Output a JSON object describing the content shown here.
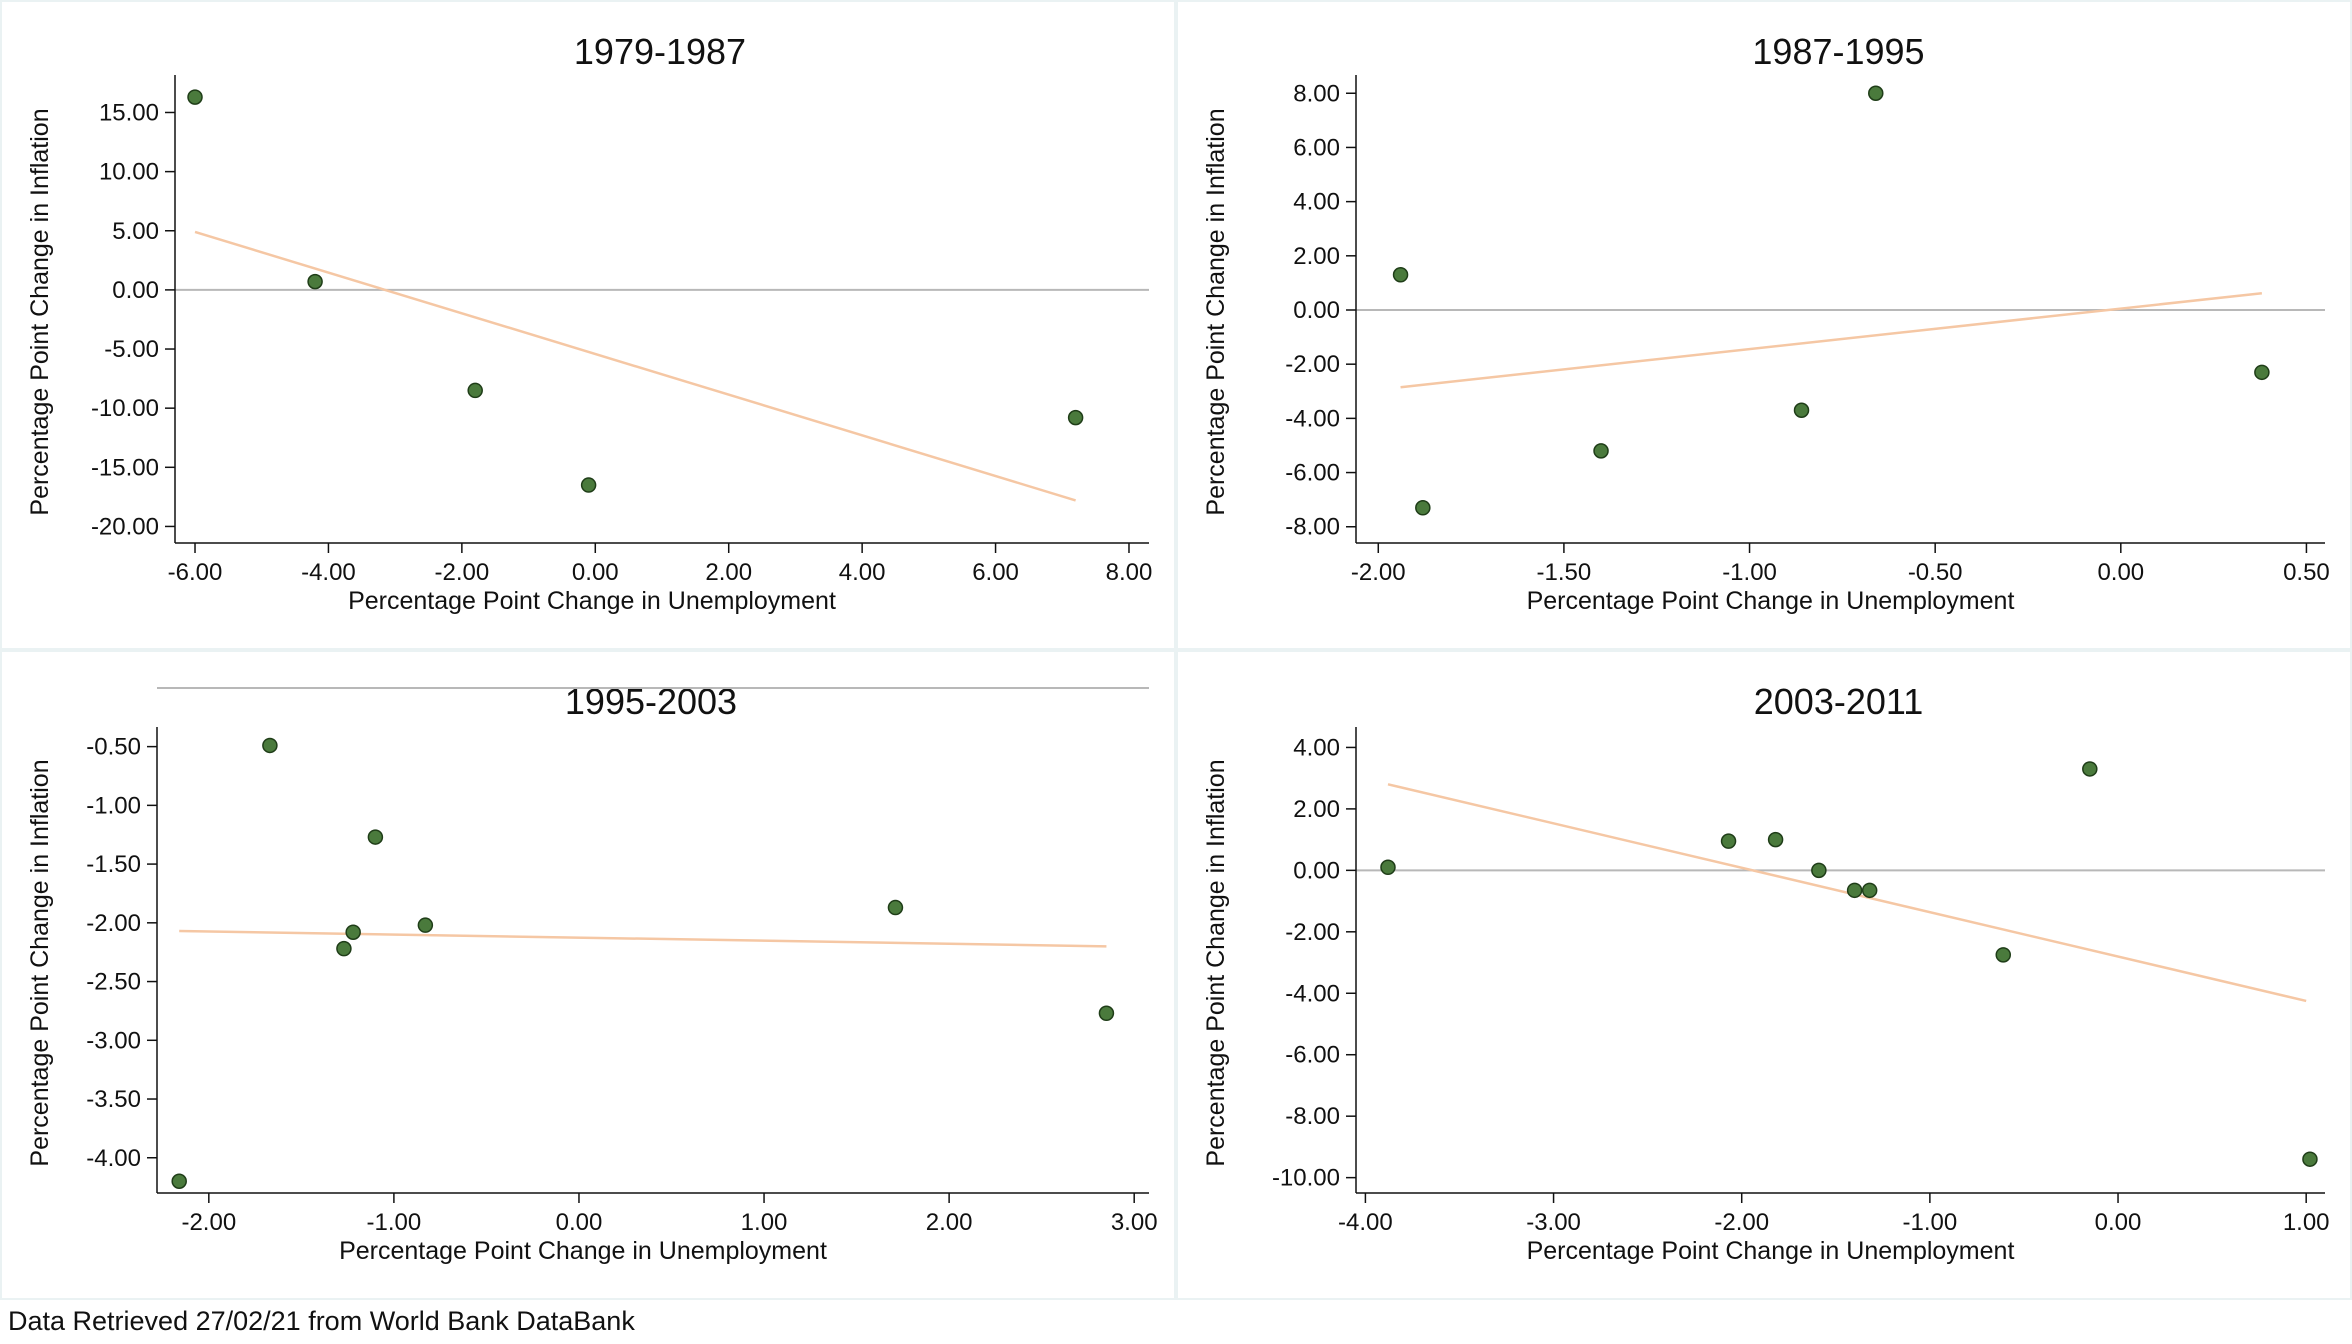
{
  "footer_note": "Data Retrieved 27/02/21 from World Bank DataBank",
  "colors": {
    "point_fill": "#4a7a3c",
    "point_stroke": "#1f3d18",
    "fit_line": "#f5c7a4",
    "zero_line": "#b8b8b8",
    "axis": "#111111"
  },
  "chart_data": [
    {
      "type": "scatter",
      "title": "1979-1987",
      "xlabel": "Percentage Point Change in Unemployment",
      "ylabel": "Percentage Point Change in Inflation",
      "xlim": [
        -6.3,
        8.3
      ],
      "ylim": [
        -21.4,
        18.0
      ],
      "xticks": [
        -6,
        -4,
        -2,
        0,
        2,
        4,
        6,
        8
      ],
      "xtick_labels": [
        "-6.00",
        "-4.00",
        "-2.00",
        "0.00",
        "2.00",
        "4.00",
        "6.00",
        "8.00"
      ],
      "yticks": [
        15,
        10,
        5,
        0,
        -5,
        -10,
        -15,
        -20
      ],
      "ytick_labels": [
        "15.00",
        "10.00",
        "5.00",
        "0.00",
        "-5.00",
        "-10.00",
        "-15.00",
        "-20.00"
      ],
      "zero_line": 0,
      "points": [
        {
          "x": -6.0,
          "y": 16.3
        },
        {
          "x": -4.2,
          "y": 0.7
        },
        {
          "x": -1.8,
          "y": -8.5
        },
        {
          "x": -0.1,
          "y": -16.5
        },
        {
          "x": 7.2,
          "y": -10.8
        }
      ],
      "fit": {
        "x": [
          -6.0,
          7.2
        ],
        "y": [
          4.9,
          -17.8
        ]
      }
    },
    {
      "type": "scatter",
      "title": "1987-1995",
      "xlabel": "Percentage Point Change in Unemployment",
      "ylabel": "Percentage Point Change in Inflation",
      "xlim": [
        -2.06,
        0.55
      ],
      "ylim": [
        -8.6,
        8.6
      ],
      "xticks": [
        -2.0,
        -1.5,
        -1.0,
        -0.5,
        0.0,
        0.5
      ],
      "xtick_labels": [
        "-2.00",
        "-1.50",
        "-1.00",
        "-0.50",
        "0.00",
        "0.50"
      ],
      "yticks": [
        8,
        6,
        4,
        2,
        0,
        -2,
        -4,
        -6,
        -8
      ],
      "ytick_labels": [
        "8.00",
        "6.00",
        "4.00",
        "2.00",
        "0.00",
        "-2.00",
        "-4.00",
        "-6.00",
        "-8.00"
      ],
      "zero_line": 0,
      "points": [
        {
          "x": -1.94,
          "y": 1.3
        },
        {
          "x": -1.88,
          "y": -7.3
        },
        {
          "x": -1.4,
          "y": -5.2
        },
        {
          "x": -0.86,
          "y": -3.7
        },
        {
          "x": -0.66,
          "y": 8.0
        },
        {
          "x": 0.38,
          "y": -2.3
        }
      ],
      "fit": {
        "x": [
          -1.94,
          0.38
        ],
        "y": [
          -2.85,
          0.62
        ]
      }
    },
    {
      "type": "scatter",
      "title": "1995-2003",
      "xlabel": "Percentage Point Change in Unemployment",
      "ylabel": "Percentage Point Change in Inflation",
      "xlim": [
        -2.28,
        3.08
      ],
      "ylim": [
        -4.3,
        -0.35
      ],
      "xticks": [
        -2,
        -1,
        0,
        1,
        2,
        3
      ],
      "xtick_labels": [
        "-2.00",
        "-1.00",
        "0.00",
        "1.00",
        "2.00",
        "3.00"
      ],
      "yticks": [
        -0.5,
        -1.0,
        -1.5,
        -2.0,
        -2.5,
        -3.0,
        -3.5,
        -4.0
      ],
      "ytick_labels": [
        "-0.50",
        "-1.00",
        "-1.50",
        "-2.00",
        "-2.50",
        "-3.00",
        "-3.50",
        "-4.00"
      ],
      "zero_line": 0,
      "points": [
        {
          "x": -2.16,
          "y": -4.2
        },
        {
          "x": -1.67,
          "y": -0.49
        },
        {
          "x": -1.27,
          "y": -2.22
        },
        {
          "x": -1.22,
          "y": -2.08
        },
        {
          "x": -1.1,
          "y": -1.27
        },
        {
          "x": -0.83,
          "y": -2.02
        },
        {
          "x": 1.71,
          "y": -1.87
        },
        {
          "x": 2.85,
          "y": -2.77
        }
      ],
      "fit": {
        "x": [
          -2.16,
          2.85
        ],
        "y": [
          -2.07,
          -2.2
        ]
      }
    },
    {
      "type": "scatter",
      "title": "2003-2011",
      "xlabel": "Percentage Point Change in Unemployment",
      "ylabel": "Percentage Point Change in Inflation",
      "xlim": [
        -4.05,
        1.1
      ],
      "ylim": [
        -10.5,
        4.6
      ],
      "xticks": [
        -4,
        -3,
        -2,
        -1,
        0,
        1
      ],
      "xtick_labels": [
        "-4.00",
        "-3.00",
        "-2.00",
        "-1.00",
        "0.00",
        "1.00"
      ],
      "yticks": [
        4,
        2,
        0,
        -2,
        -4,
        -6,
        -8,
        -10
      ],
      "ytick_labels": [
        "4.00",
        "2.00",
        "0.00",
        "-2.00",
        "-4.00",
        "-6.00",
        "-8.00",
        "-10.00"
      ],
      "zero_line": 0,
      "points": [
        {
          "x": -3.88,
          "y": 0.1
        },
        {
          "x": -2.07,
          "y": 0.95
        },
        {
          "x": -1.82,
          "y": 1.0
        },
        {
          "x": -1.59,
          "y": 0.0
        },
        {
          "x": -1.4,
          "y": -0.65
        },
        {
          "x": -1.32,
          "y": -0.65
        },
        {
          "x": -0.61,
          "y": -2.75
        },
        {
          "x": -0.15,
          "y": 3.3
        },
        {
          "x": 1.02,
          "y": -9.4
        }
      ],
      "fit": {
        "x": [
          -3.88,
          1.0
        ],
        "y": [
          2.8,
          -4.25
        ]
      }
    }
  ]
}
